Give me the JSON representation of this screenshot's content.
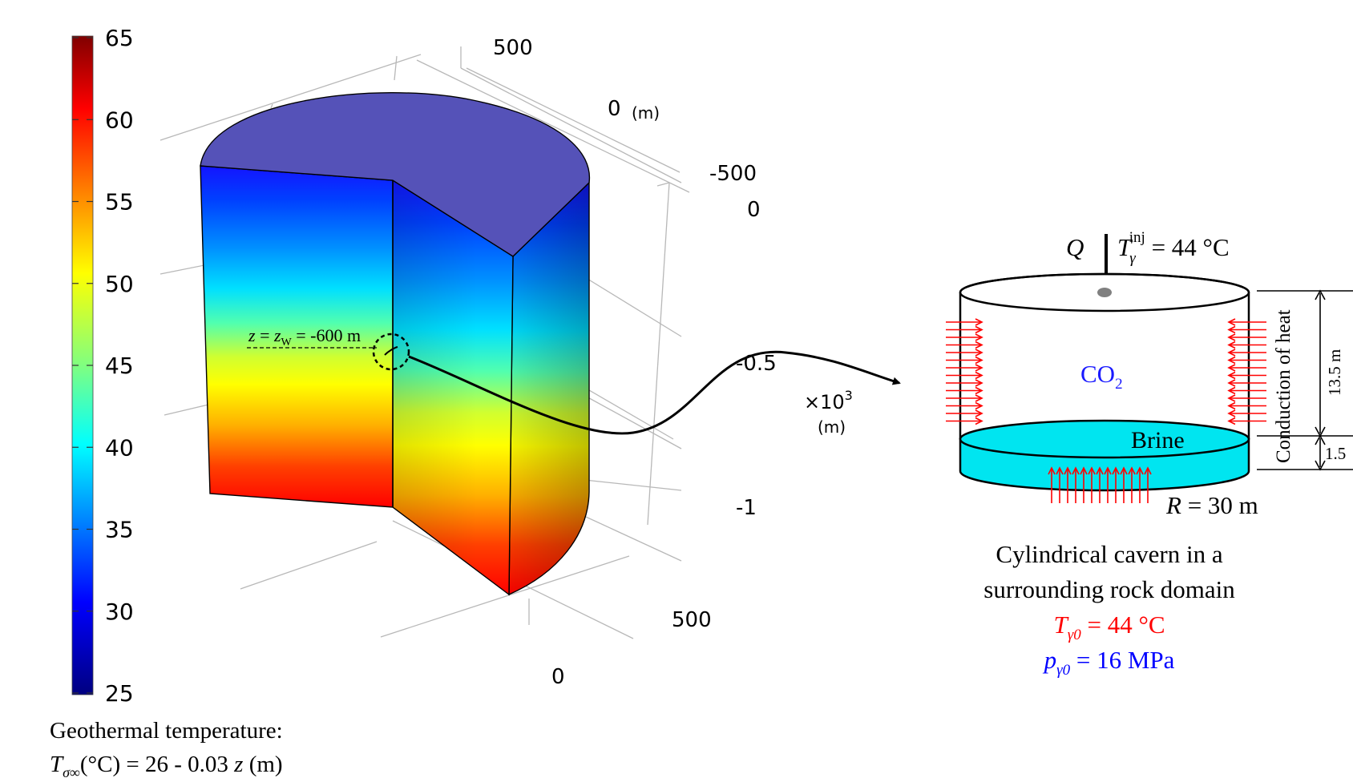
{
  "colorbar": {
    "ticks": [
      "65",
      "60",
      "55",
      "50",
      "45",
      "40",
      "35",
      "30",
      "25"
    ],
    "min": 25,
    "max": 65,
    "colormap": "jet"
  },
  "axes": {
    "y_top_tick": "500",
    "y_mid_tick": "0",
    "y_unit": "(m)",
    "y_neg_tick": "-500",
    "z_tick_0": "0",
    "z_tick_05": "-0.5",
    "z_tick_1": "-1",
    "z_multiplier": "×10",
    "z_multiplier_exp": "3",
    "z_unit": "(m)",
    "x_tick_500": "500",
    "x_tick_0": "0"
  },
  "well_annotation": {
    "z_italic": "z",
    "eq1": " = ",
    "zw_italic": "z",
    "zw_sub": "W",
    "depth": " = -600 m"
  },
  "caption_left": {
    "line1": "Geothermal temperature:",
    "T_symbol": "T",
    "T_sub": "σ∞",
    "expr_a": "(°C) = 26 - 0.03 ",
    "z_italic": "z",
    "expr_b": " (m)"
  },
  "cavern": {
    "Q": "Q",
    "T_symbol": "T",
    "T_sub": "γ",
    "T_sup": "inj",
    "inj_value": " = 44 °C",
    "co2": "CO",
    "co2_sub": "2",
    "brine": "Brine",
    "R_label": "R",
    "R_value": " = 30 m",
    "height_gas": "13.5 m",
    "height_brine": "1.5",
    "conduction": "Conduction of heat",
    "caption_line1": "Cylindrical cavern in a",
    "caption_line2": "surrounding rock domain",
    "T0_symbol": "T",
    "T0_sub": "γ0",
    "T0_value": " = 44 °C",
    "p0_symbol": "p",
    "p0_sub": "γ0",
    "p0_value": " = 16 MPa"
  },
  "colors": {
    "top_face": "#5552b8",
    "co2_text": "#1a1aff",
    "red_text": "#ff0000",
    "blue_text": "#0000ff",
    "brine_fill": "#00e5f0",
    "arrow_red": "#ff0000"
  }
}
